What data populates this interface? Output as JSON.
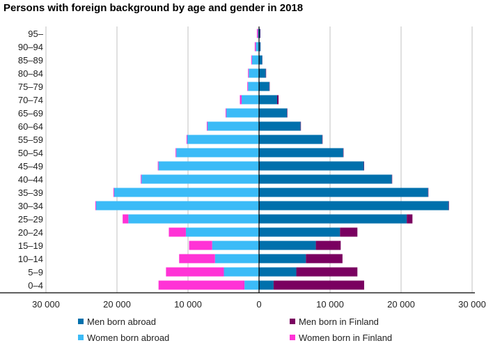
{
  "chart_data": {
    "type": "bar",
    "orientation": "horizontal-pyramid",
    "stacked": true,
    "title": "Persons with foreign background by age and gender in 2018",
    "categories": [
      "95–",
      "90–94",
      "85–89",
      "80–84",
      "75–79",
      "70–74",
      "65–69",
      "60–64",
      "55–59",
      "50–54",
      "45–49",
      "40–44",
      "35–39",
      "30–34",
      "25–29",
      "20–24",
      "15–19",
      "10–14",
      "5–9",
      "0–4"
    ],
    "series": [
      {
        "name": "Men born abroad",
        "side": "right",
        "color": "#0070AC",
        "values": [
          150,
          200,
          450,
          950,
          1450,
          2550,
          3950,
          5850,
          8900,
          11850,
          14750,
          18700,
          23800,
          26700,
          20800,
          11400,
          8000,
          6600,
          5250,
          2050
        ]
      },
      {
        "name": "Men born in Finland",
        "side": "right",
        "color": "#7A0060",
        "values": [
          50,
          20,
          20,
          50,
          50,
          200,
          50,
          50,
          50,
          50,
          50,
          50,
          50,
          50,
          800,
          2450,
          3500,
          5150,
          8600,
          12750
        ]
      },
      {
        "name": "Women born abroad",
        "side": "left",
        "color": "#3BBBF7",
        "values": [
          150,
          450,
          1000,
          1450,
          1550,
          2450,
          4600,
          7250,
          10100,
          11650,
          14150,
          16550,
          20400,
          22950,
          18400,
          10300,
          6600,
          6200,
          4950,
          2050
        ]
      },
      {
        "name": "Women born in Finland",
        "side": "left",
        "color": "#FF33D6",
        "values": [
          150,
          150,
          100,
          100,
          100,
          250,
          100,
          100,
          100,
          100,
          100,
          100,
          100,
          100,
          800,
          2400,
          3250,
          5050,
          8150,
          12100
        ]
      }
    ],
    "xlim": [
      -30000,
      30000
    ],
    "xticks": [
      -30000,
      -20000,
      -10000,
      0,
      10000,
      20000,
      30000
    ],
    "xtick_labels": [
      "30 000",
      "20 000",
      "10 000",
      "0",
      "10 000",
      "20 000",
      "30 000"
    ],
    "grid": true,
    "legend_position": "bottom"
  }
}
